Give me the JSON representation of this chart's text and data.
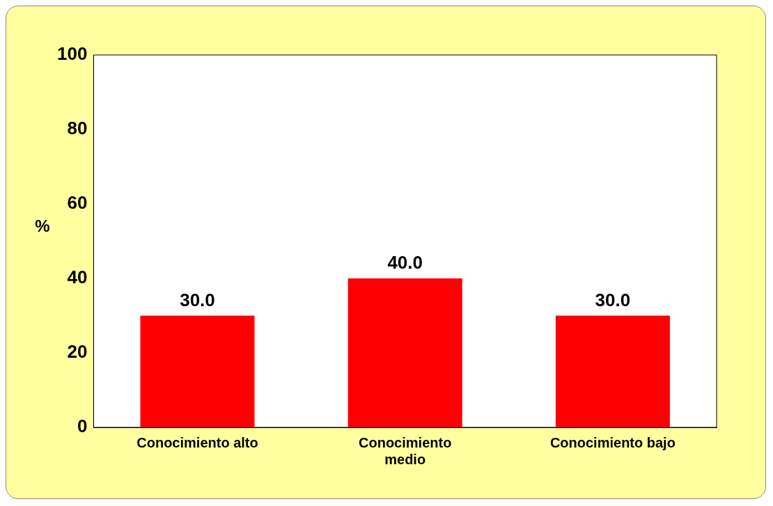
{
  "chart_data": {
    "type": "bar",
    "ylabel": "%",
    "categories": [
      "Conocimiento alto",
      "Conocimiento medio",
      "Conocimiento bajo"
    ],
    "values": [
      30,
      40,
      30
    ],
    "value_labels": [
      "30.0",
      "40.0",
      "30.0"
    ],
    "color": "#ff0000",
    "ylim": [
      0,
      100
    ],
    "yticks": [
      0,
      20,
      40,
      60,
      80,
      100
    ],
    "grid": false,
    "legend": false
  }
}
